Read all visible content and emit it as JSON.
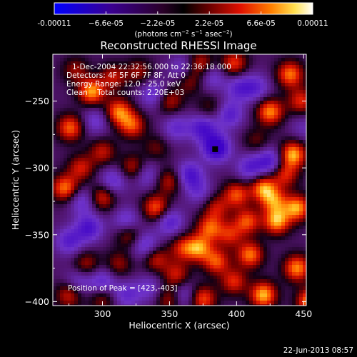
{
  "chart_data": {
    "type": "heatmap",
    "title": "Reconstructed RHESSI Image",
    "xlabel": "Heliocentric X (arcsec)",
    "ylabel": "Heliocentric Y (arcsec)",
    "xlim": [
      263,
      452
    ],
    "ylim": [
      -403,
      -215
    ],
    "x_ticks": [
      300,
      350,
      400,
      450
    ],
    "y_ticks": [
      -250,
      -300,
      -350,
      -400
    ],
    "colorbar": {
      "min": -0.00011,
      "max": 0.00011,
      "tick_values": [
        -0.00011,
        -6.6e-05,
        -2.2e-05,
        2.2e-05,
        6.6e-05,
        0.00011
      ],
      "tick_labels": [
        "-0.00011",
        "−6.6e-05",
        "−2.2e-05",
        "2.2e-05",
        "6.6e-05",
        "0.00011"
      ],
      "units_text": "(photons cm",
      "units_exp1": "−2",
      "units_mid": " s",
      "units_exp2": "−1",
      "units_mid2": " asec",
      "units_exp3": "−2",
      "units_end": ")"
    },
    "annotations": [
      "1-Dec-2004 22:32:56.000 to 22:36:18.000",
      "Detectors: 4F 5F 6F 7F 8F, Att 0",
      "Energy Range: 12.0 - 25.0 keV",
      "Clean    Total counts: 2.20E+03"
    ],
    "peak_label": "Position of Peak = [423,-403]",
    "peak": [
      423,
      -403
    ],
    "timestamp": "22-Jun-2013 08:57",
    "bright_spots": [
      [
        292,
        -243,
        0.9
      ],
      [
        276,
        -270,
        0.75
      ],
      [
        308,
        -232,
        0.5
      ],
      [
        312,
        -258,
        0.8
      ],
      [
        322,
        -268,
        0.7
      ],
      [
        284,
        -300,
        0.55
      ],
      [
        300,
        -288,
        0.5
      ],
      [
        323,
        -300,
        0.55
      ],
      [
        272,
        -315,
        0.8
      ],
      [
        300,
        -322,
        0.6
      ],
      [
        340,
        -330,
        0.75
      ],
      [
        350,
        -310,
        0.5
      ],
      [
        350,
        -250,
        0.5
      ],
      [
        365,
        -235,
        0.4
      ],
      [
        373,
        -222,
        0.55
      ],
      [
        398,
        -222,
        0.65
      ],
      [
        425,
        -258,
        0.85
      ],
      [
        440,
        -230,
        0.8
      ],
      [
        448,
        -250,
        0.6
      ],
      [
        442,
        -290,
        0.95
      ],
      [
        420,
        -315,
        0.85
      ],
      [
        400,
        -320,
        0.7
      ],
      [
        380,
        -345,
        0.7
      ],
      [
        395,
        -350,
        0.55
      ],
      [
        410,
        -365,
        0.8
      ],
      [
        430,
        -340,
        0.9
      ],
      [
        445,
        -330,
        0.9
      ],
      [
        445,
        -375,
        0.85
      ],
      [
        420,
        -395,
        0.95
      ],
      [
        375,
        -398,
        0.7
      ],
      [
        398,
        -385,
        0.6
      ],
      [
        355,
        -380,
        0.55
      ],
      [
        340,
        -368,
        0.55
      ],
      [
        320,
        -350,
        0.5
      ],
      [
        312,
        -372,
        0.4
      ],
      [
        288,
        -372,
        0.45
      ],
      [
        275,
        -395,
        0.55
      ],
      [
        300,
        -398,
        0.4
      ],
      [
        350,
        -398,
        0.5
      ],
      [
        372,
        -360,
        0.8
      ],
      [
        385,
        -370,
        0.7
      ],
      [
        408,
        -340,
        0.7
      ],
      [
        428,
        -325,
        0.7
      ],
      [
        436,
        -305,
        0.6
      ],
      [
        385,
        -330,
        0.5
      ],
      [
        360,
        -360,
        0.55
      ],
      [
        455,
        -400,
        0.9
      ],
      [
        327,
        -228,
        0.4
      ],
      [
        280,
        -227,
        0.4
      ],
      [
        340,
        -285,
        0.3
      ],
      [
        380,
        -255,
        0.3
      ],
      [
        415,
        -280,
        0.3
      ]
    ],
    "dark_spots": [
      [
        385,
        -285,
        1.0
      ],
      [
        410,
        -300,
        0.6
      ],
      [
        425,
        -295,
        0.7
      ],
      [
        375,
        -270,
        0.7
      ],
      [
        395,
        -260,
        0.6
      ],
      [
        365,
        -305,
        0.7
      ],
      [
        350,
        -340,
        0.65
      ],
      [
        332,
        -358,
        0.6
      ],
      [
        318,
        -340,
        0.55
      ],
      [
        290,
        -345,
        0.7
      ],
      [
        275,
        -355,
        0.6
      ],
      [
        285,
        -325,
        0.5
      ],
      [
        308,
        -310,
        0.55
      ],
      [
        332,
        -305,
        0.5
      ],
      [
        338,
        -245,
        0.55
      ],
      [
        355,
        -270,
        0.5
      ],
      [
        295,
        -265,
        0.45
      ],
      [
        300,
        -385,
        0.55
      ],
      [
        318,
        -395,
        0.5
      ],
      [
        282,
        -385,
        0.45
      ],
      [
        360,
        -395,
        0.5
      ],
      [
        402,
        -240,
        0.55
      ],
      [
        382,
        -232,
        0.45
      ],
      [
        415,
        -240,
        0.5
      ],
      [
        360,
        -225,
        0.45
      ],
      [
        335,
        -390,
        0.4
      ],
      [
        450,
        -270,
        0.3
      ],
      [
        372,
        -318,
        0.4
      ]
    ]
  }
}
